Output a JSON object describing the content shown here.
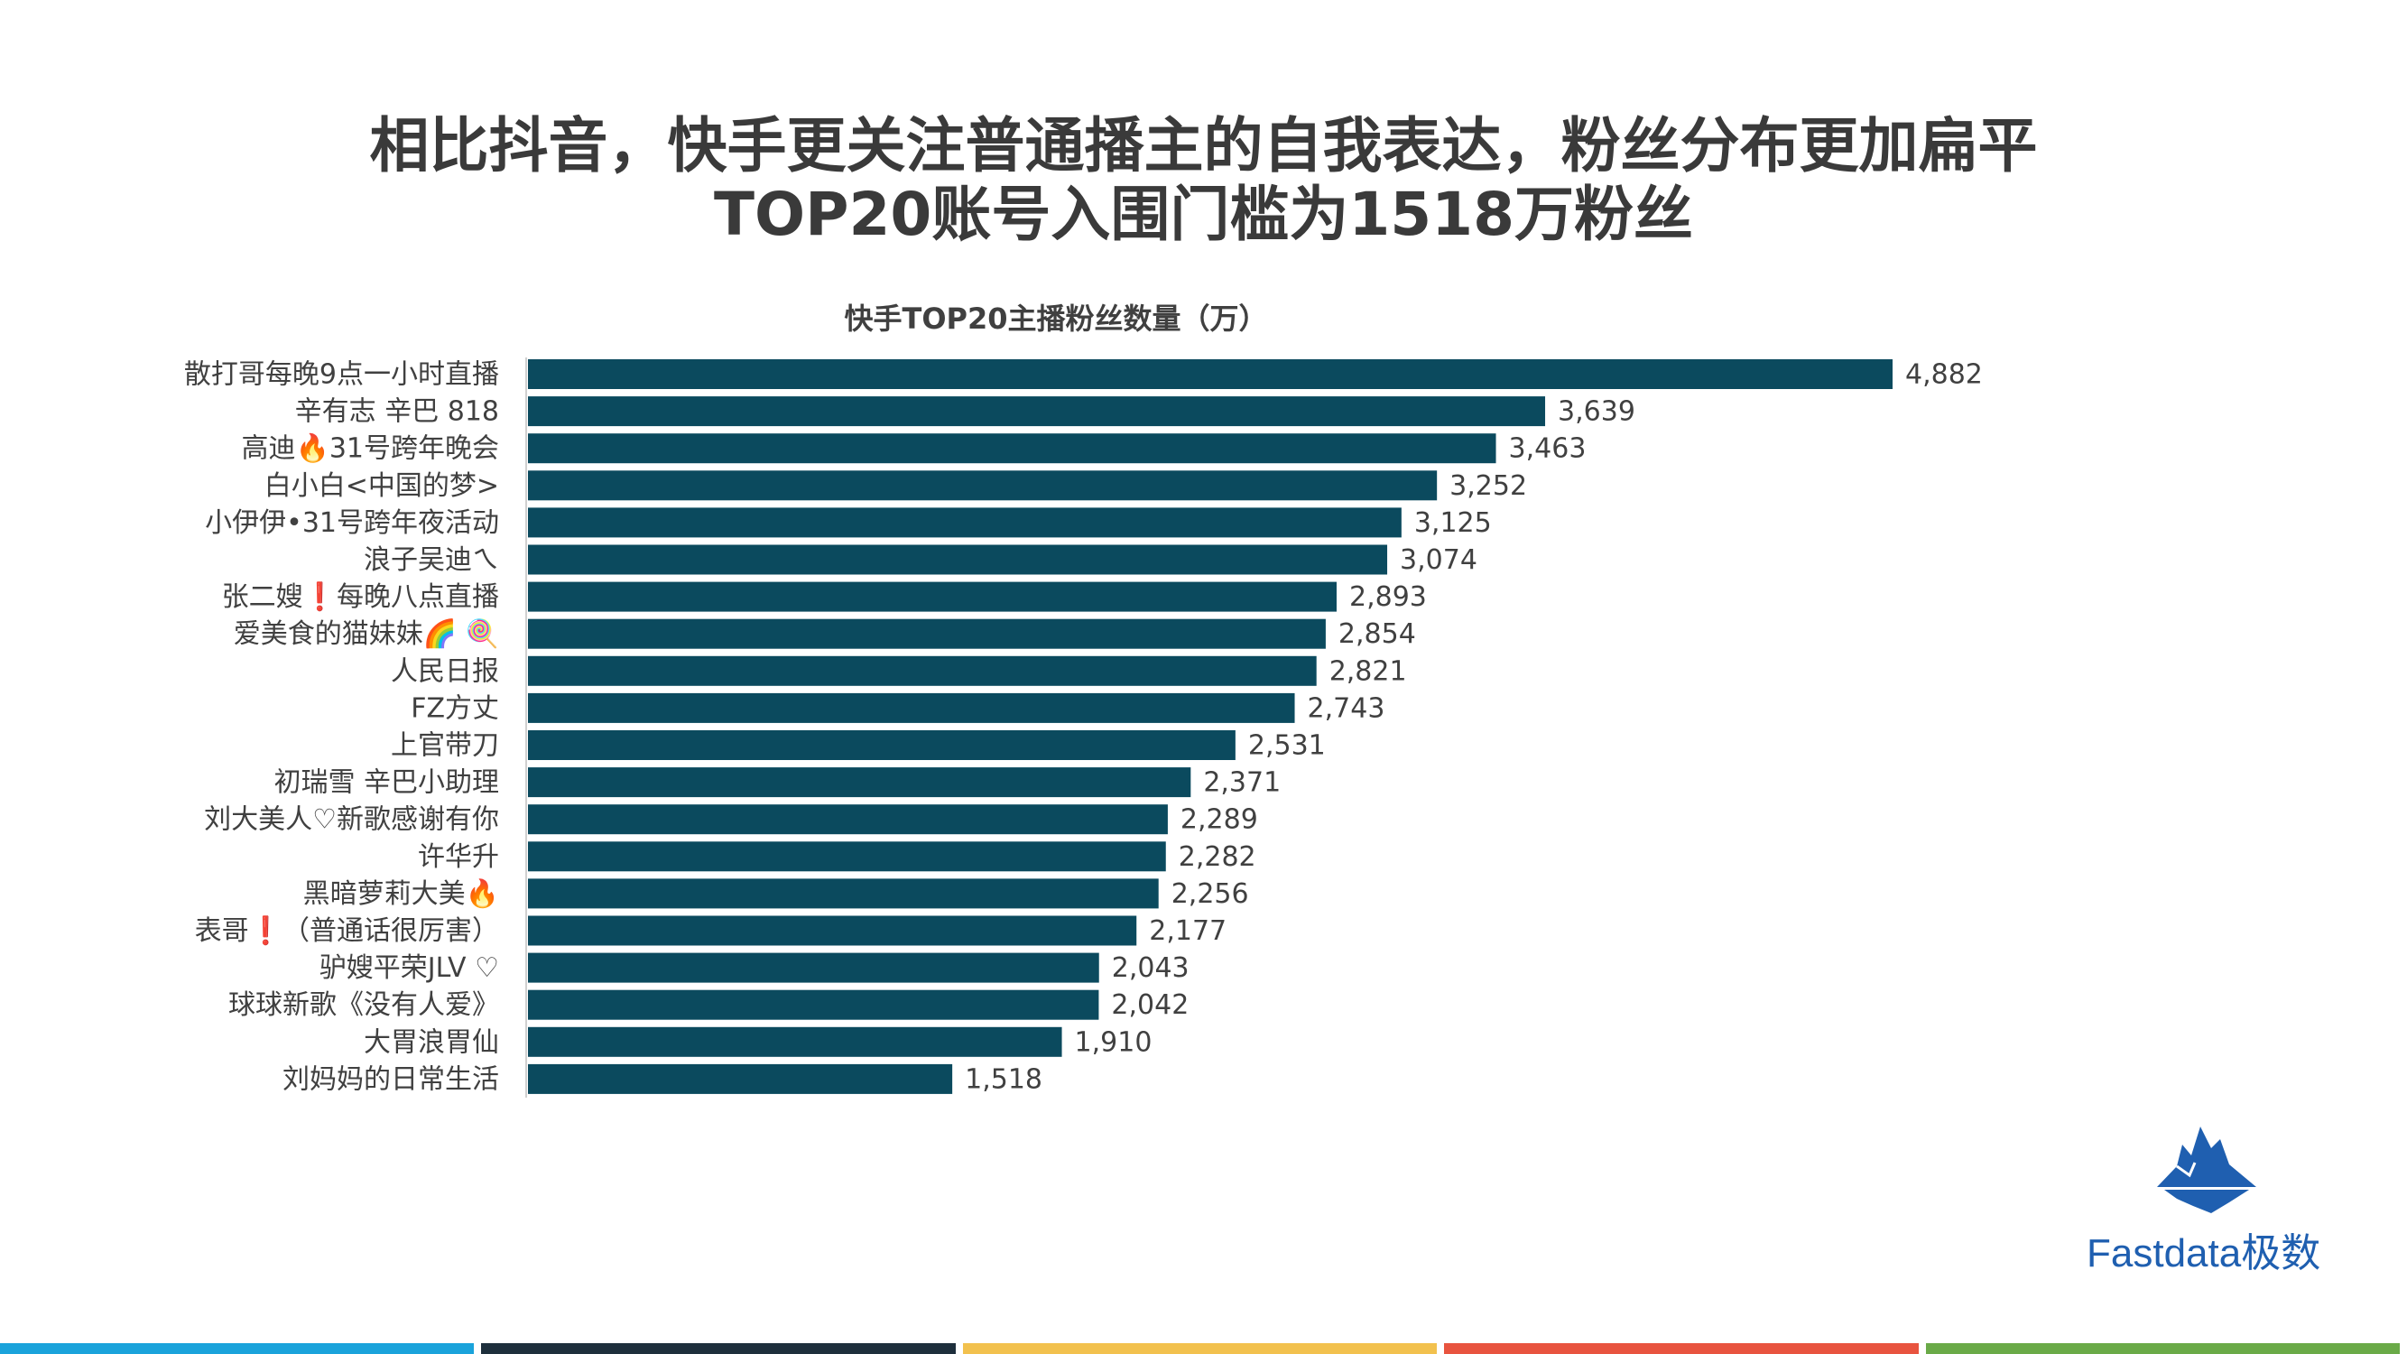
{
  "title": {
    "line1": "相比抖音，快手更关注普通播主的自我表达，粉丝分布更加扁平",
    "line2": "TOP20账号入围门槛为1518万粉丝"
  },
  "chart_data": {
    "type": "bar",
    "orientation": "horizontal",
    "title": "快手TOP20主播粉丝数量（万）",
    "xlabel": "",
    "ylabel": "",
    "xlim": [
      0,
      5000
    ],
    "grid": false,
    "legend": "none",
    "bar_color": "#0b4a5e",
    "categories": [
      "散打哥每晚9点一小时直播",
      "辛有志 辛巴 818",
      "高迪🔥31号跨年晚会",
      "白小白<中国的梦>",
      "小伊伊•31号跨年夜活动",
      "浪子吴迪ㄟ",
      "张二嫂❗每晚八点直播",
      "爱美食的猫妹妹🌈 🍭",
      "人民日报",
      "FZ方丈",
      "上官带刀",
      "初瑞雪 辛巴小助理",
      "刘大美人♡新歌感谢有你",
      "许华升",
      "黑暗萝莉大美🔥",
      "表哥❗（普通话很厉害）",
      "驴嫂平荣JLV ♡",
      "球球新歌《没有人爱》",
      "大胃浪胃仙",
      "刘妈妈的日常生活"
    ],
    "values": [
      4882,
      3639,
      3463,
      3252,
      3125,
      3074,
      2893,
      2854,
      2821,
      2743,
      2531,
      2371,
      2289,
      2282,
      2256,
      2177,
      2043,
      2042,
      1910,
      1518
    ],
    "value_labels": [
      "4,882",
      "3,639",
      "3,463",
      "3,252",
      "3,125",
      "3,074",
      "2,893",
      "2,854",
      "2,821",
      "2,743",
      "2,531",
      "2,371",
      "2,289",
      "2,282",
      "2,256",
      "2,177",
      "2,043",
      "2,042",
      "1,910",
      "1,518"
    ]
  },
  "logo": {
    "text": "Fastdata极数",
    "icon": "iceberg-icon",
    "color": "#1f5fb0"
  },
  "footer_colors": [
    "#1aa3db",
    "#1e2f3c",
    "#f2c14e",
    "#e8543f",
    "#6aaa48"
  ]
}
